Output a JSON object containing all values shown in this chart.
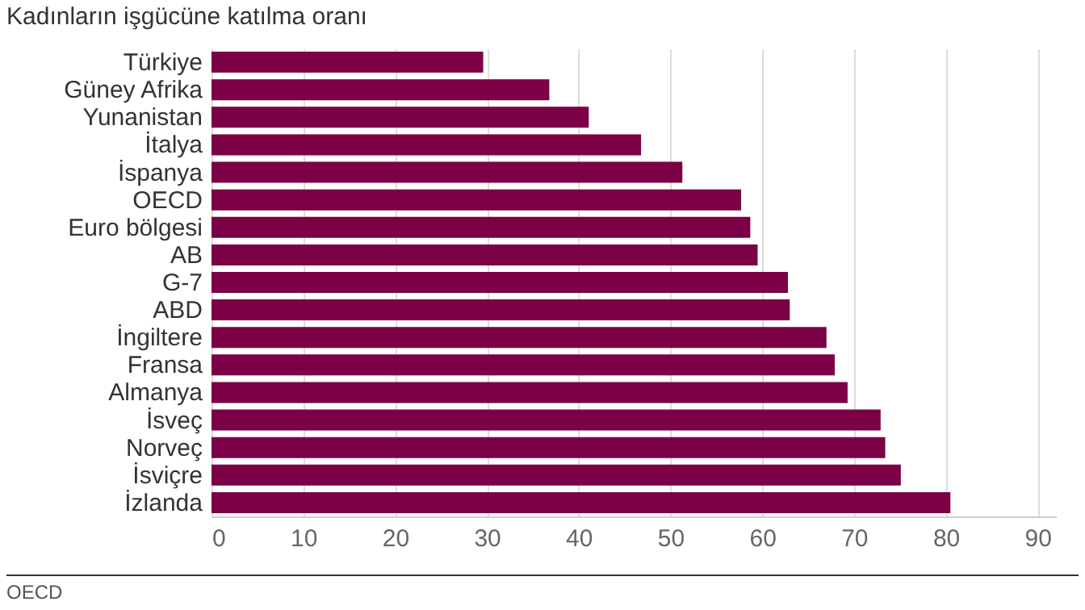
{
  "chart_data": {
    "type": "bar",
    "orientation": "horizontal",
    "title": "Kadınların işgücüne katılma oranı",
    "categories": [
      "Türkiye",
      "Güney Afrika",
      "Yunanistan",
      "İtalya",
      "İspanya",
      "OECD",
      "Euro bölgesi",
      "AB",
      "G-7",
      "ABD",
      "İngiltere",
      "Fransa",
      "Almanya",
      "İsveç",
      "Norveç",
      "İsviçre",
      "İzlanda"
    ],
    "values": [
      29.6,
      36.8,
      41.1,
      46.8,
      51.3,
      57.7,
      58.7,
      59.5,
      62.8,
      63.0,
      67.0,
      67.9,
      69.3,
      72.9,
      73.4,
      75.1,
      80.5
    ],
    "color": "#7b0046",
    "xlim": [
      0,
      92
    ],
    "xticks": [
      0,
      10,
      20,
      30,
      40,
      50,
      60,
      70,
      80,
      90
    ],
    "grid": "x",
    "annotations": [
      "OECD"
    ]
  }
}
